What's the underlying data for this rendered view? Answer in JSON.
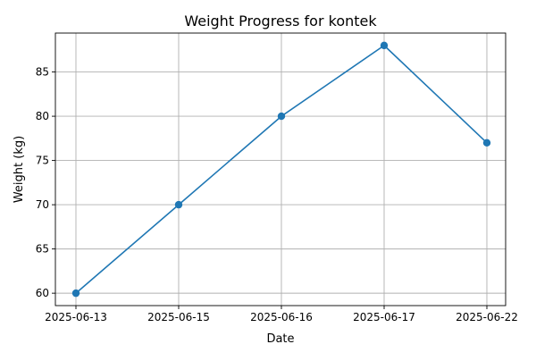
{
  "chart_data": {
    "type": "line",
    "title": "Weight Progress for kontek",
    "xlabel": "Date",
    "ylabel": "Weight (kg)",
    "categories": [
      "2025-06-13",
      "2025-06-15",
      "2025-06-16",
      "2025-06-17",
      "2025-06-22"
    ],
    "series": [
      {
        "values": [
          60,
          70,
          80,
          88,
          77
        ]
      }
    ],
    "y_ticks": [
      60,
      65,
      70,
      75,
      80,
      85
    ],
    "ylim": [
      58.6,
      89.4
    ],
    "grid": true,
    "markers": "circle",
    "colors": {
      "line": "#1f77b4",
      "grid": "#b0b0b0",
      "axes": "#000000"
    }
  }
}
